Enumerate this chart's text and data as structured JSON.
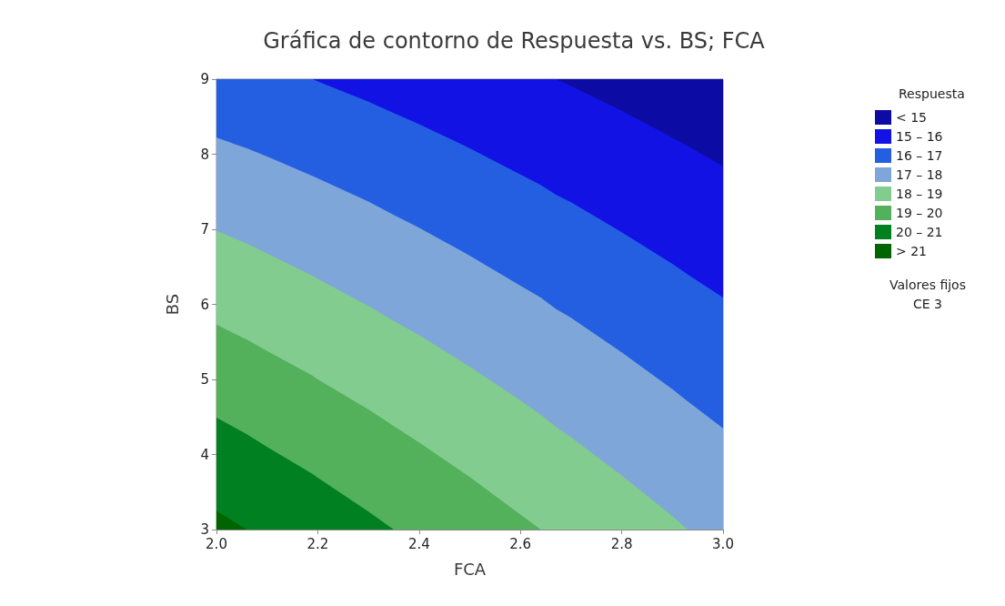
{
  "chart_data": {
    "type": "area",
    "title": "Gráfica de contorno de Respuesta vs. BS; FCA",
    "xlabel": "FCA",
    "ylabel": "BS",
    "legend_title": "Respuesta",
    "legend": "right",
    "annotations": [
      "Valores fijos",
      "CE 3"
    ],
    "xlim": [
      2,
      3
    ],
    "xticks": [
      {
        "value": 2,
        "label": "2.0"
      },
      2.2,
      2.4,
      2.6,
      2.8,
      {
        "value": 3,
        "label": "3.0"
      }
    ],
    "ylim": [
      3,
      9
    ],
    "yticks": [
      3,
      4,
      5,
      6,
      7,
      8,
      9
    ],
    "x": [
      2,
      2.06,
      2.1,
      2.19,
      2.2,
      2.3,
      2.35,
      2.4,
      2.5,
      2.6,
      2.64,
      2.67,
      2.7,
      2.8,
      2.9,
      2.93,
      3
    ],
    "series": [
      {
        "name": "< 15",
        "color": "#0c0ca5",
        "values": [
          null,
          null,
          null,
          null,
          null,
          null,
          null,
          null,
          null,
          null,
          null,
          9,
          9,
          9,
          9,
          9,
          9
        ]
      },
      {
        "name": "15 – 16",
        "color": "#1212e4",
        "values": [
          null,
          null,
          null,
          9,
          9,
          9,
          9,
          9,
          9,
          9,
          9,
          9,
          8.91,
          8.58,
          8.22,
          8.11,
          7.84
        ]
      },
      {
        "name": "16 – 17",
        "color": "#245fe2",
        "values": [
          9,
          9,
          9,
          9,
          8.97,
          8.7,
          8.55,
          8.4,
          8.08,
          7.73,
          7.59,
          7.46,
          7.36,
          6.96,
          6.54,
          6.4,
          6.09
        ]
      },
      {
        "name": "17 – 18",
        "color": "#7ea6d8",
        "values": [
          8.22,
          8.08,
          7.97,
          7.71,
          7.68,
          7.37,
          7.19,
          7.02,
          6.65,
          6.25,
          6.09,
          5.94,
          5.82,
          5.36,
          4.87,
          4.71,
          4.35
        ]
      },
      {
        "name": "18 – 19",
        "color": "#82cc8f",
        "values": [
          6.98,
          6.81,
          6.68,
          6.38,
          6.34,
          5.98,
          5.78,
          5.59,
          5.17,
          4.72,
          4.53,
          4.37,
          4.23,
          3.72,
          3.18,
          3,
          null
        ]
      },
      {
        "name": "19 – 20",
        "color": "#53b05b",
        "values": [
          5.73,
          5.53,
          5.38,
          5.05,
          5.0,
          4.6,
          4.38,
          4.16,
          3.7,
          3.2,
          3,
          null,
          null,
          null,
          null,
          null,
          null
        ]
      },
      {
        "name": "20 – 21",
        "color": "#008020",
        "values": [
          4.49,
          4.27,
          4.1,
          3.74,
          3.69,
          3.24,
          3,
          null,
          null,
          null,
          null,
          null,
          null,
          null,
          null,
          null,
          null
        ]
      },
      {
        "name": "> 21",
        "color": "#006400",
        "values": [
          3.25,
          3,
          null,
          null,
          null,
          null,
          null,
          null,
          null,
          null,
          null,
          null,
          null,
          null,
          null,
          null,
          null
        ]
      }
    ]
  }
}
